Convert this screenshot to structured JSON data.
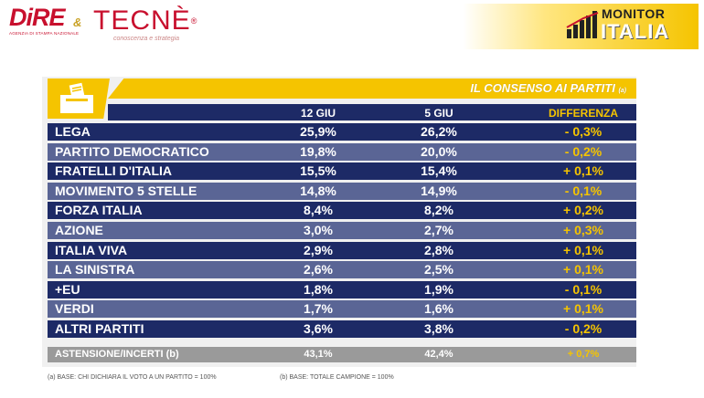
{
  "header": {
    "logo_dire": "DiRE",
    "logo_dire_sub": "AGENZIA DI STAMPA NAZIONALE",
    "amp": "&",
    "logo_tecne": "TECNÈ",
    "logo_tecne_reg": "®",
    "logo_tecne_tag": "conoscenza e strategia",
    "monitor_line1": "MONITOR",
    "monitor_line2": "ITALIA"
  },
  "table": {
    "title": "IL CONSENSO AI PARTITI",
    "title_note": "(a)",
    "columns": [
      "12 GIU",
      "5 GIU",
      "DIFFERENZA"
    ],
    "rows": [
      {
        "party": "LEGA",
        "v1": "25,9%",
        "v2": "26,2%",
        "diff": "- 0,3%"
      },
      {
        "party": "PARTITO DEMOCRATICO",
        "v1": "19,8%",
        "v2": "20,0%",
        "diff": "- 0,2%"
      },
      {
        "party": "FRATELLI D'ITALIA",
        "v1": "15,5%",
        "v2": "15,4%",
        "diff": "+ 0,1%"
      },
      {
        "party": "MOVIMENTO 5 STELLE",
        "v1": "14,8%",
        "v2": "14,9%",
        "diff": "- 0,1%"
      },
      {
        "party": "FORZA ITALIA",
        "v1": "8,4%",
        "v2": "8,2%",
        "diff": "+ 0,2%"
      },
      {
        "party": "AZIONE",
        "v1": "3,0%",
        "v2": "2,7%",
        "diff": "+ 0,3%"
      },
      {
        "party": "ITALIA VIVA",
        "v1": "2,9%",
        "v2": "2,8%",
        "diff": "+ 0,1%"
      },
      {
        "party": "LA SINISTRA",
        "v1": "2,6%",
        "v2": "2,5%",
        "diff": "+ 0,1%"
      },
      {
        "party": "+EU",
        "v1": "1,8%",
        "v2": "1,9%",
        "diff": "- 0,1%"
      },
      {
        "party": "VERDI",
        "v1": "1,7%",
        "v2": "1,6%",
        "diff": "+ 0,1%"
      },
      {
        "party": "ALTRI PARTITI",
        "v1": "3,6%",
        "v2": "3,8%",
        "diff": "- 0,2%"
      }
    ],
    "abstention": {
      "party": "ASTENSIONE/INCERTI (b)",
      "v1": "43,1%",
      "v2": "42,4%",
      "diff": "+ 0,7%"
    }
  },
  "footnotes": {
    "a": "(a)   BASE: CHI DICHIARA IL VOTO A UN PARTITO = 100%",
    "b": "(b)   BASE: TOTALE CAMPIONE = 100%"
  },
  "colors": {
    "navy": "#1d2a66",
    "navy_light": "#5a6595",
    "yellow": "#f5c400",
    "red": "#c8102e",
    "gray": "#9a9a9a"
  }
}
